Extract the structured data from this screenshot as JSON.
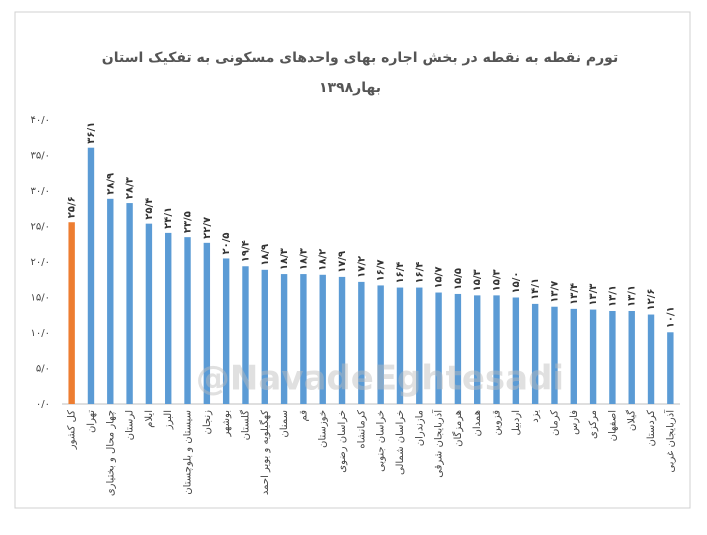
{
  "chart_data": {
    "type": "bar",
    "title": "تورم نقطه به نقطه در بخش اجاره بهای واحدهای مسکونی به تفکیک استان",
    "subtitle": "بهار۱۳۹۸",
    "watermark": "@NavadeEghtesadi",
    "categories": [
      "کل کشور",
      "تهران",
      "چهار محال و بختیاری",
      "لرستان",
      "ایلام",
      "البرز",
      "سیستان و بلوچستان",
      "زنجان",
      "بوشهر",
      "گلستان",
      "کهگیلویه و بویر احمد",
      "سمنان",
      "قم",
      "خوزستان",
      "خراسان رضوی",
      "کرمانشاه",
      "خراسان جنوبی",
      "خراسان شمالی",
      "مازندران",
      "آذربایجان شرقی",
      "هرمزگان",
      "همدان",
      "قزوین",
      "اردبیل",
      "یزد",
      "کرمان",
      "فارس",
      "مرکزی",
      "اصفهان",
      "گیلان",
      "کردستان",
      "آذربایجان غربی"
    ],
    "values": [
      25.6,
      36.1,
      28.9,
      28.3,
      25.4,
      24.1,
      23.5,
      22.7,
      20.5,
      19.4,
      18.9,
      18.3,
      18.3,
      18.2,
      17.9,
      17.2,
      16.7,
      16.4,
      16.4,
      15.7,
      15.5,
      15.3,
      15.3,
      15.0,
      14.1,
      13.7,
      13.4,
      13.3,
      13.1,
      13.1,
      12.6,
      10.1
    ],
    "value_labels": [
      "۲۵/۶",
      "۳۶/۱",
      "۲۸/۹",
      "۲۸/۳",
      "۲۵/۴",
      "۲۴/۱",
      "۲۳/۵",
      "۲۲/۷",
      "۲۰/۵",
      "۱۹/۴",
      "۱۸/۹",
      "۱۸/۳",
      "۱۸/۳",
      "۱۸/۲",
      "۱۷/۹",
      "۱۷/۲",
      "۱۶/۷",
      "۱۶/۴",
      "۱۶/۴",
      "۱۵/۷",
      "۱۵/۵",
      "۱۵/۳",
      "۱۵/۳",
      "۱۵/۰",
      "۱۴/۱",
      "۱۳/۷",
      "۱۳/۴",
      "۱۳/۳",
      "۱۳/۱",
      "۱۳/۱",
      "۱۲/۶",
      "۱۰/۱"
    ],
    "colors": [
      "#ed7d31",
      "#5b9bd5",
      "#5b9bd5",
      "#5b9bd5",
      "#5b9bd5",
      "#5b9bd5",
      "#5b9bd5",
      "#5b9bd5",
      "#5b9bd5",
      "#5b9bd5",
      "#5b9bd5",
      "#5b9bd5",
      "#5b9bd5",
      "#5b9bd5",
      "#5b9bd5",
      "#5b9bd5",
      "#5b9bd5",
      "#5b9bd5",
      "#5b9bd5",
      "#5b9bd5",
      "#5b9bd5",
      "#5b9bd5",
      "#5b9bd5",
      "#5b9bd5",
      "#5b9bd5",
      "#5b9bd5",
      "#5b9bd5",
      "#5b9bd5",
      "#5b9bd5",
      "#5b9bd5",
      "#5b9bd5",
      "#5b9bd5"
    ],
    "ylim": [
      0,
      40
    ],
    "yticks": [
      {
        "value": 0,
        "label": "۰/۰"
      },
      {
        "value": 5,
        "label": "۵/۰"
      },
      {
        "value": 10,
        "label": "۱۰/۰"
      },
      {
        "value": 15,
        "label": "۱۵/۰"
      },
      {
        "value": 20,
        "label": "۲۰/۰"
      },
      {
        "value": 25,
        "label": "۲۵/۰"
      },
      {
        "value": 30,
        "label": "۳۰/۰"
      },
      {
        "value": 35,
        "label": "۳۵/۰"
      },
      {
        "value": 40,
        "label": "۴۰/۰"
      }
    ],
    "grid": false
  }
}
